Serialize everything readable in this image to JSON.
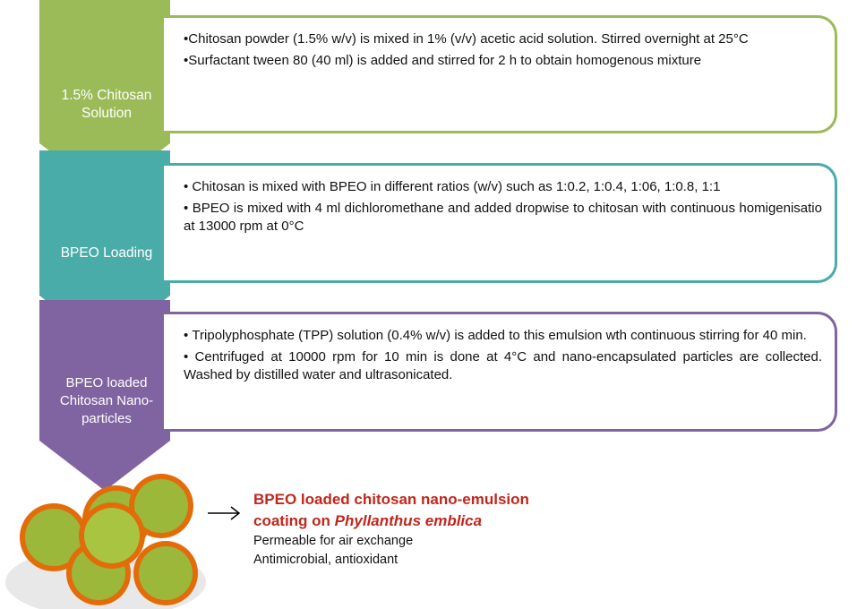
{
  "steps": [
    {
      "label": "1.5% Chitosan Solution",
      "bullets": [
        "Chitosan powder (1.5% w/v) is mixed in 1% (v/v) acetic acid solution. Stirred overnight at 25°C",
        "Surfactant tween 80 (40 ml) is added and stirred for 2 h to obtain homogenous mixture"
      ]
    },
    {
      "label": "BPEO Loading",
      "bullets": [
        "Chitosan is mixed with BPEO in different ratios (w/v) such as 1:0.2, 1:0.4, 1:06, 1:0.8, 1:1",
        "BPEO is mixed with 4 ml dichloromethane and added dropwise to chitosan with continuous homigenisatio at 13000 rpm at 0°C"
      ]
    },
    {
      "label": "BPEO loaded Chitosan Nano-particles",
      "bullets": [
        "Tripolyphosphate (TPP) solution (0.4% w/v) is added to this emulsion wth continuous stirring for 40 min.",
        "Centrifuged at 10000 rpm for 10 min is done at 4°C and nano-encapsulated particles are collected. Washed by distilled water and ultrasonicated."
      ]
    }
  ],
  "result": {
    "title_line1": "BPEO loaded chitosan nano-emulsion",
    "title_line2": "coating on ",
    "species": "Phyllanthus emblica",
    "details": [
      "Permeable for air exchange",
      "Antimicrobial, antioxidant"
    ]
  }
}
